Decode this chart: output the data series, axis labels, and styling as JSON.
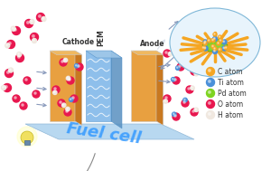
{
  "bg_color": "#f5f5f5",
  "title": "",
  "legend_items": [
    {
      "label": "C atom",
      "color": "#f5a623"
    },
    {
      "label": "Ti atom",
      "color": "#4a90d9"
    },
    {
      "label": "Pd atom",
      "color": "#7ed321"
    },
    {
      "label": "O atom",
      "color": "#e8174f"
    },
    {
      "label": "H atom",
      "color": "#f0e8e0"
    }
  ],
  "fuel_cell_text": "Fuel cell",
  "fuel_cell_color": "#3399ff",
  "cathode_label": "Cathode",
  "anode_label": "Anode",
  "pem_label": "PEM",
  "panel_color": "#e8a040",
  "pem_color": "#7ab4e8",
  "base_color": "#a8c8e8"
}
